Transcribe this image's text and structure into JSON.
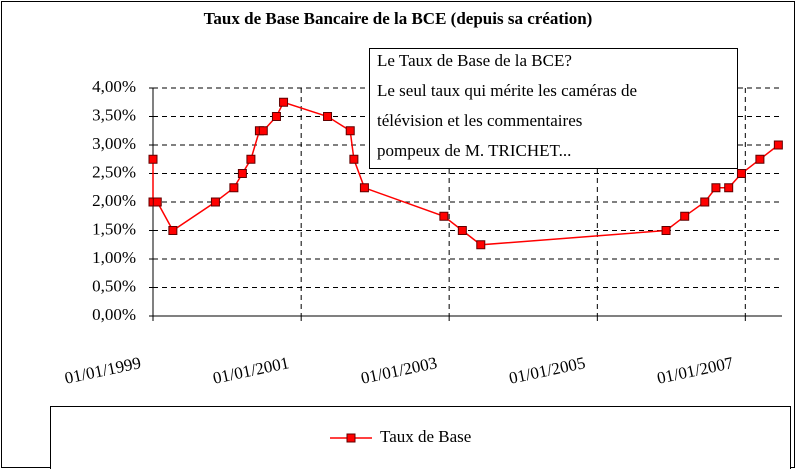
{
  "chart_data": {
    "type": "line",
    "title": "Taux de Base Bancaire de la BCE (depuis sa création)",
    "annotation": [
      "Le Taux de Base de la BCE?",
      "Le seul taux qui mérite les caméras de",
      "télévision et les commentaires",
      "pompeux de M. TRICHET..."
    ],
    "x": [
      "1999-01-01",
      "1999-01-01",
      "1999-01-22",
      "1999-04-09",
      "1999-11-05",
      "2000-02-04",
      "2000-03-17",
      "2000-04-28",
      "2000-06-09",
      "2000-06-28",
      "2000-09-01",
      "2000-10-06",
      "2001-05-11",
      "2001-08-31",
      "2001-09-18",
      "2001-11-09",
      "2002-12-06",
      "2003-03-07",
      "2003-06-06",
      "2005-12-06",
      "2006-03-08",
      "2006-06-15",
      "2006-08-09",
      "2006-10-11",
      "2006-12-13",
      "2007-03-14",
      "2007-06-13"
    ],
    "series": [
      {
        "name": "Taux de Base",
        "color": "#ff0000",
        "marker_edge": "#600000",
        "values": [
          2.75,
          2.0,
          2.0,
          1.5,
          2.0,
          2.25,
          2.5,
          2.75,
          3.25,
          3.25,
          3.5,
          3.75,
          3.5,
          3.25,
          2.75,
          2.25,
          1.75,
          1.5,
          1.25,
          1.5,
          1.75,
          2.0,
          2.25,
          2.25,
          2.5,
          2.75,
          3.0
        ]
      }
    ],
    "xlim": [
      "1999-01-01",
      "2007-07-01"
    ],
    "xticks": [
      {
        "value": "1999-01-01",
        "label": "01/01/1999"
      },
      {
        "value": "2001-01-01",
        "label": "01/01/2001"
      },
      {
        "value": "2003-01-01",
        "label": "01/01/2003"
      },
      {
        "value": "2005-01-01",
        "label": "01/01/2005"
      },
      {
        "value": "2007-01-01",
        "label": "01/01/2007"
      }
    ],
    "ylim": [
      0,
      4
    ],
    "yticks": [
      {
        "value": 0,
        "label": "0,00%"
      },
      {
        "value": 0.5,
        "label": "0,50%"
      },
      {
        "value": 1,
        "label": "1,00%"
      },
      {
        "value": 1.5,
        "label": "1,50%"
      },
      {
        "value": 2,
        "label": "2,00%"
      },
      {
        "value": 2.5,
        "label": "2,50%"
      },
      {
        "value": 3,
        "label": "3,00%"
      },
      {
        "value": 3.5,
        "label": "3,50%"
      },
      {
        "value": 4,
        "label": "4,00%"
      }
    ],
    "grid": true,
    "legend": "bottom"
  }
}
